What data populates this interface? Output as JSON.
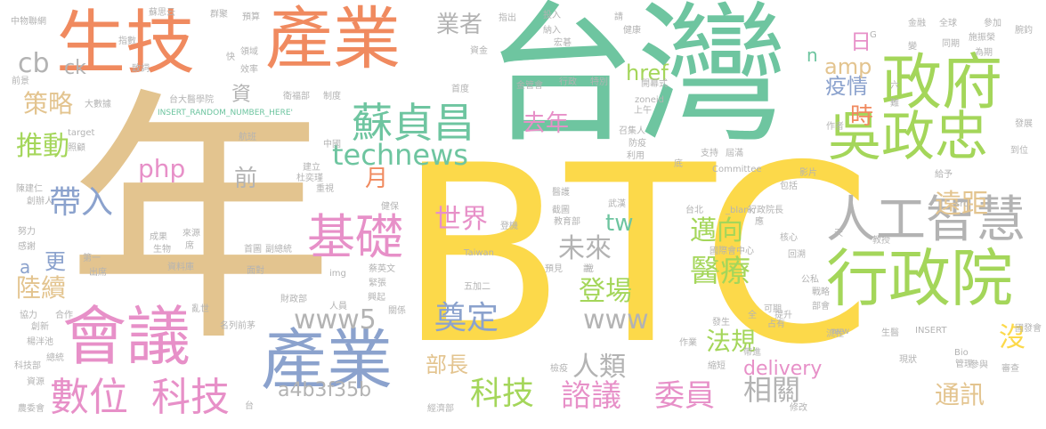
{
  "colors": {
    "tan": "#e3c48f",
    "teal": "#6ec5a0",
    "yellow": "#fcd94a",
    "coral": "#f08a5f",
    "green": "#a4d65a",
    "pink": "#e790c8",
    "blue": "#8ba2cd",
    "gray": "#b3b3b3"
  },
  "words": [
    "年",
    "BTC",
    "台灣",
    "產業",
    "生技",
    "政府",
    "吳政忠",
    "行政院",
    "人工智慧",
    "會議",
    "產業",
    "數位",
    "科技",
    "基礎",
    "蘇貞昌",
    "technews",
    "科技",
    "諮議",
    "委員",
    "www5",
    "奠定",
    "登場",
    "世界",
    "tw",
    "未來",
    "邁向",
    "醫療",
    "www",
    "人類",
    "法規",
    "相關",
    "delivery",
    "通訊",
    "沒",
    "遠距",
    "疫情",
    "時",
    "日",
    "amp",
    "業者",
    "去年",
    "php",
    "前",
    "月",
    "推動",
    "策略",
    "帶入",
    "更",
    "陸續",
    "cb",
    "ck",
    "a",
    "資",
    "href",
    "n",
    "a4b3f35b",
    "部長",
    "INSERT_RANDOM_NUMBER_HERE'",
    "台大醫學院",
    "衛福部",
    "制度",
    "中國",
    "航班",
    "杜奕瑾",
    "建立",
    "重視",
    "陳建仁",
    "創辦人",
    "努力",
    "感謝",
    "楊泮池",
    "創新",
    "總統",
    "科技部",
    "資源",
    "農委會",
    "經濟部",
    "Taiwan",
    "五加二",
    "登機",
    "武漢",
    "教育部",
    "截圖",
    "預見",
    "說",
    "行政院長",
    "核心",
    "國際會中心",
    "回溯",
    "公私",
    "戰略",
    "部會",
    "可期",
    "提升",
    "占有",
    "發生",
    "作業",
    "流程",
    "縮短",
    "生醫",
    "INSERT",
    "Bio",
    "參與",
    "審查",
    "Committee",
    "包括",
    "影片",
    "給予",
    "src",
    "到位",
    "發展",
    "國發會",
    "蘇思云",
    "指數",
    "致詞",
    "前景",
    "大數據",
    "target",
    "照顧",
    "領域",
    "效率",
    "快",
    "群聚",
    "預算",
    "指出",
    "投入",
    "納入",
    "宏碁",
    "行政",
    "特別",
    "首度",
    "金管會",
    "資金",
    "開幕式",
    "上午",
    "zoneid",
    "召集人",
    "防疫",
    "利用",
    "支持",
    "屆滿",
    "底",
    "台北",
    "_blank'",
    "應",
    "天",
    "教授",
    "全",
    "亂世",
    "協力",
    "名列前茅",
    "財政部",
    "img",
    "蔡英文",
    "緊張",
    "興起",
    "關係",
    "檢疫",
    "現狀",
    "帶進",
    "管理",
    "施振榮",
    "為期",
    "參加",
    "腕鈞",
    "全球",
    "金融",
    "同期",
    "健康",
    "請",
    "G",
    "六",
    "難",
    "作者",
    "變",
    "avw",
    "人員",
    "來源",
    "成果",
    "生物",
    "席",
    "資料庫",
    "首圖",
    "副總統",
    "面對",
    "修改",
    "出席",
    "第一",
    "合作",
    "健保",
    "醫護",
    "台",
    "中物聯網",
    "說"
  ]
}
